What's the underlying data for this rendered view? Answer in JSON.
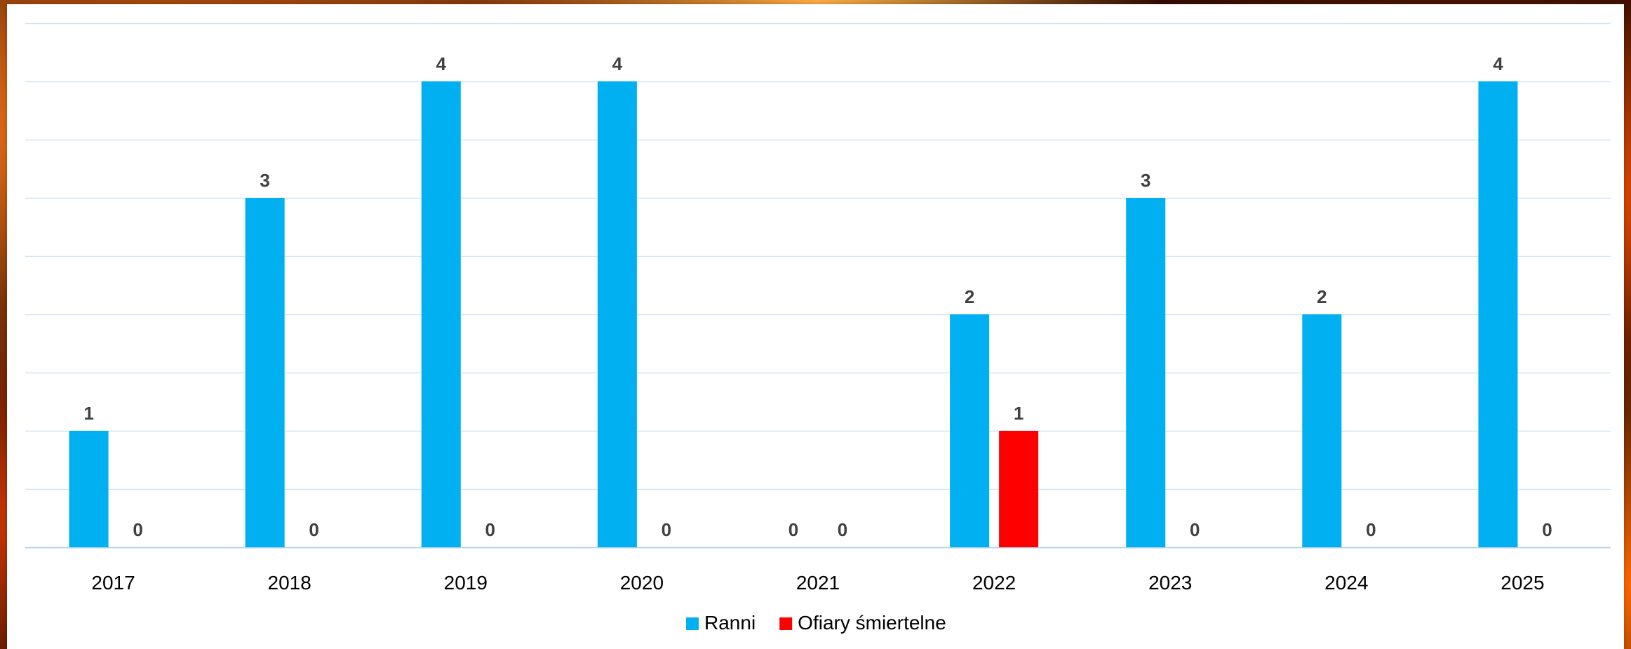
{
  "chart_data": {
    "type": "bar",
    "categories": [
      "2017",
      "2018",
      "2019",
      "2020",
      "2021",
      "2022",
      "2023",
      "2024",
      "2025"
    ],
    "series": [
      {
        "name": "Ranni",
        "color": "#00b0f0",
        "values": [
          1,
          3,
          4,
          4,
          0,
          2,
          3,
          2,
          4
        ]
      },
      {
        "name": "Ofiary śmiertelne",
        "color": "#ff0000",
        "values": [
          0,
          0,
          0,
          0,
          0,
          1,
          0,
          0,
          0
        ]
      }
    ],
    "ylim": [
      0,
      4.5
    ],
    "grid": true,
    "gridline_step": 0.5,
    "legend": "bottom",
    "title": "",
    "xlabel": "",
    "ylabel": ""
  }
}
